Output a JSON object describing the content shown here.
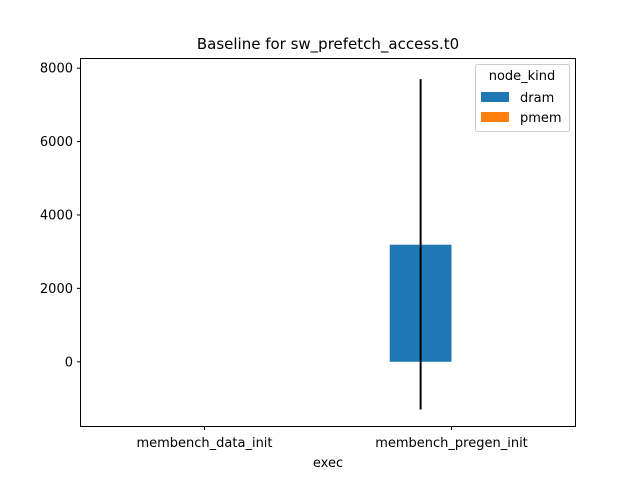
{
  "chart_data": {
    "type": "bar",
    "title": "Baseline for sw_prefetch_access.t0",
    "xlabel": "exec",
    "ylabel": "",
    "categories": [
      "membench_data_init",
      "membench_pregen_init"
    ],
    "ylim": [
      -1750,
      8250
    ],
    "yticks": [
      0,
      2000,
      4000,
      6000,
      8000
    ],
    "grid": false,
    "legend": {
      "title": "node_kind",
      "position": "top-right"
    },
    "series": [
      {
        "name": "dram",
        "color": "#1f77b4",
        "values": [
          null,
          3190
        ],
        "error_low": [
          null,
          -1300
        ],
        "error_high": [
          null,
          7700
        ]
      },
      {
        "name": "pmem",
        "color": "#ff7f0e",
        "values": [
          null,
          null
        ],
        "error_low": [
          null,
          null
        ],
        "error_high": [
          null,
          null
        ]
      }
    ]
  }
}
